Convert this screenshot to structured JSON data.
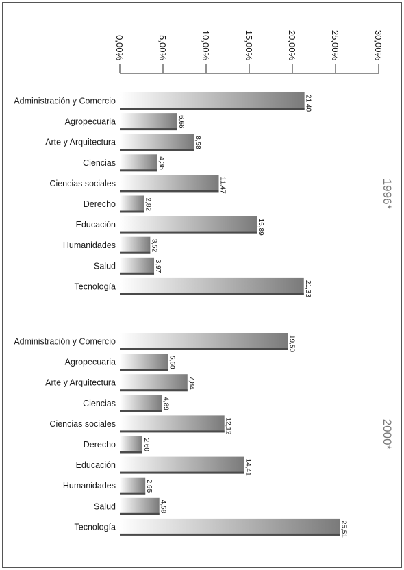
{
  "chart_data": {
    "type": "bar",
    "orientation": "horizontal",
    "xlim": [
      0,
      30
    ],
    "ticks": [
      "0,00%",
      "5,00%",
      "10,00%",
      "15,00%",
      "20,00%",
      "25,00%",
      "30,00%"
    ],
    "groups": [
      {
        "label": "1996*",
        "categories": [
          "Administración y Comercio",
          "Agropecuaria",
          "Arte y Arquitectura",
          "Ciencias",
          "Ciencias sociales",
          "Derecho",
          "Educación",
          "Humanidades",
          "Salud",
          "Tecnología"
        ],
        "values": [
          21.4,
          6.66,
          8.58,
          4.36,
          11.47,
          2.82,
          15.89,
          3.52,
          3.97,
          21.33
        ],
        "value_labels": [
          "21,40",
          "6,66",
          "8,58",
          "4,36",
          "11,47",
          "2,82",
          "15,89",
          "3,52",
          "3,97",
          "21,33"
        ]
      },
      {
        "label": "2000*",
        "categories": [
          "Administración y Comercio",
          "Agropecuaria",
          "Arte y Arquitectura",
          "Ciencias",
          "Ciencias sociales",
          "Derecho",
          "Educación",
          "Humanidades",
          "Salud",
          "Tecnología"
        ],
        "values": [
          19.5,
          5.6,
          7.84,
          4.89,
          12.12,
          2.6,
          14.41,
          2.95,
          4.58,
          25.51
        ],
        "value_labels": [
          "19,50",
          "5,60",
          "7,84",
          "4,89",
          "12,12",
          "2,60",
          "14,41",
          "2,95",
          "4,58",
          "25,51"
        ]
      }
    ],
    "bar_gradient": [
      "#ffffff",
      "#7a7a7a"
    ],
    "bar_shadow": "#4a4a4a",
    "axis_color": "#222222",
    "group_label_color": "#777777"
  }
}
